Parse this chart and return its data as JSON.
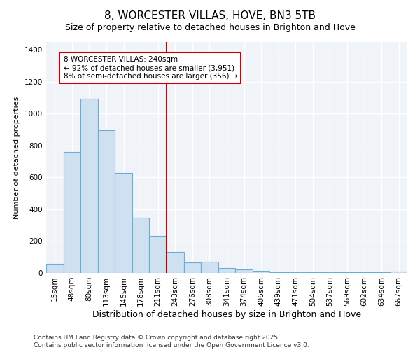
{
  "title": "8, WORCESTER VILLAS, HOVE, BN3 5TB",
  "subtitle": "Size of property relative to detached houses in Brighton and Hove",
  "xlabel": "Distribution of detached houses by size in Brighton and Hove",
  "ylabel": "Number of detached properties",
  "categories": [
    "15sqm",
    "48sqm",
    "80sqm",
    "113sqm",
    "145sqm",
    "178sqm",
    "211sqm",
    "243sqm",
    "276sqm",
    "308sqm",
    "341sqm",
    "374sqm",
    "406sqm",
    "439sqm",
    "471sqm",
    "504sqm",
    "537sqm",
    "569sqm",
    "602sqm",
    "634sqm",
    "667sqm"
  ],
  "values": [
    55,
    760,
    1095,
    895,
    630,
    345,
    235,
    130,
    65,
    70,
    30,
    20,
    15,
    5,
    5,
    5,
    5,
    5,
    5,
    5,
    10
  ],
  "bar_color": "#cfe0f0",
  "bar_edgecolor": "#6aaed6",
  "vline_x_index": 7,
  "vline_color": "#cc0000",
  "annotation_text": "8 WORCESTER VILLAS: 240sqm\n← 92% of detached houses are smaller (3,951)\n8% of semi-detached houses are larger (356) →",
  "annotation_box_facecolor": "#ffffff",
  "annotation_box_edgecolor": "#cc0000",
  "ylim": [
    0,
    1450
  ],
  "yticks": [
    0,
    200,
    400,
    600,
    800,
    1000,
    1200,
    1400
  ],
  "plot_bg_color": "#f0f4f8",
  "fig_bg_color": "#ffffff",
  "grid_color": "#ffffff",
  "footer_text": "Contains HM Land Registry data © Crown copyright and database right 2025.\nContains public sector information licensed under the Open Government Licence v3.0.",
  "title_fontsize": 11,
  "subtitle_fontsize": 9,
  "xlabel_fontsize": 9,
  "ylabel_fontsize": 8,
  "tick_fontsize": 7.5,
  "annotation_fontsize": 7.5,
  "footer_fontsize": 6.5
}
